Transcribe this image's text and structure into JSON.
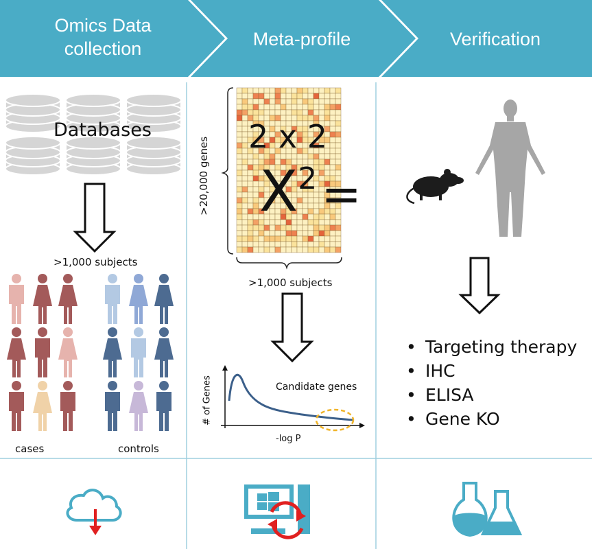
{
  "stages": [
    {
      "line1": "Omics Data",
      "line2": "collection"
    },
    {
      "title": "Meta-profile"
    },
    {
      "title": "Verification"
    }
  ],
  "column1": {
    "databases_label": "Databases",
    "subjects_label": ">1,000 subjects",
    "cases_label": "cases",
    "controls_label": "controls"
  },
  "column2": {
    "heatmap_rows_label": ">20,000 genes",
    "heatmap_cols_label": ">1,000 subjects",
    "overlay_stat1": "2 x 2",
    "overlay_stat2_base": "X",
    "overlay_stat2_exp": "2",
    "overlay_stat2_eq": "=",
    "plot_ylabel": "# of Genes",
    "plot_xlabel": "-log P",
    "plot_annotation": "Candidate genes"
  },
  "column3": {
    "methods": [
      "Targeting therapy",
      "IHC",
      "ELISA",
      "Gene KO"
    ]
  },
  "icons": [
    "cloud-download-icon",
    "computer-sync-icon",
    "lab-flasks-icon"
  ],
  "colors": {
    "banner": "#4aacc6",
    "grid_line": "#9fcfdf",
    "case_dark": "#a35a5a",
    "case_light": "#e6b3ad",
    "control_dark": "#4d6b91",
    "control_light": "#b3c9e3",
    "curve": "#3b5f8a",
    "candidate_ellipse": "#f0b429",
    "download_arrow": "#e02020",
    "sync_arrows": "#e02020"
  }
}
